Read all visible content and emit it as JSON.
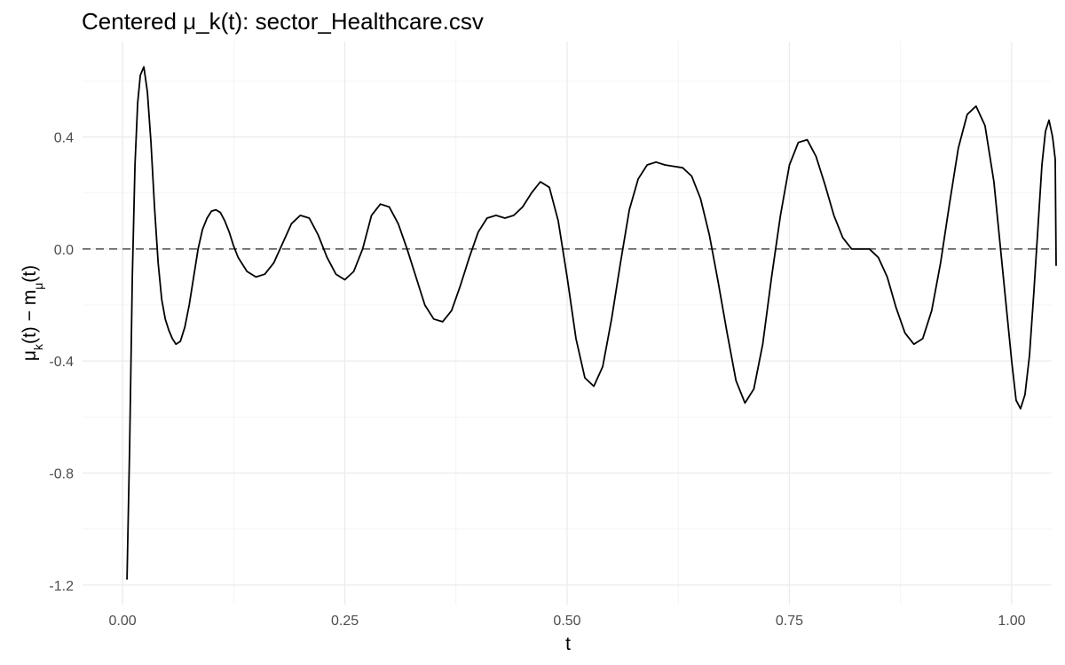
{
  "chart_data": {
    "type": "line",
    "title": "Centered μ_k(t): sector_Healthcare.csv",
    "xlabel": "t",
    "ylabel": {
      "main": "μ",
      "sub1": "k",
      "mid": "(t) − m",
      "sub2": "μ",
      "end": "(t)"
    },
    "xlim": [
      -0.045,
      1.045
    ],
    "ylim": [
      -1.27,
      0.74
    ],
    "x_ticks": [
      0.0,
      0.25,
      0.5,
      0.75,
      1.0
    ],
    "x_tick_labels": [
      "0.00",
      "0.25",
      "0.50",
      "0.75",
      "1.00"
    ],
    "x_minor_ticks": [
      0.125,
      0.375,
      0.625,
      0.875
    ],
    "y_ticks": [
      -1.2,
      -0.8,
      -0.4,
      0.0,
      0.4
    ],
    "y_tick_labels": [
      "-1.2",
      "-0.8",
      "-0.4",
      "0.0",
      "0.4"
    ],
    "y_minor_ticks": [
      -1.0,
      -0.6,
      -0.2,
      0.2,
      0.6
    ],
    "grid": true,
    "reference_line": {
      "y": 0.0,
      "style": "dashed",
      "color": "#595959"
    },
    "series": [
      {
        "color": "#000000",
        "points": [
          [
            0.005,
            -1.18
          ],
          [
            0.008,
            -0.7
          ],
          [
            0.011,
            -0.1
          ],
          [
            0.014,
            0.3
          ],
          [
            0.017,
            0.52
          ],
          [
            0.02,
            0.62
          ],
          [
            0.024,
            0.65
          ],
          [
            0.028,
            0.56
          ],
          [
            0.032,
            0.38
          ],
          [
            0.036,
            0.15
          ],
          [
            0.04,
            -0.05
          ],
          [
            0.044,
            -0.18
          ],
          [
            0.048,
            -0.25
          ],
          [
            0.052,
            -0.29
          ],
          [
            0.056,
            -0.32
          ],
          [
            0.06,
            -0.34
          ],
          [
            0.065,
            -0.33
          ],
          [
            0.07,
            -0.28
          ],
          [
            0.075,
            -0.2
          ],
          [
            0.08,
            -0.1
          ],
          [
            0.085,
            0.0
          ],
          [
            0.09,
            0.07
          ],
          [
            0.095,
            0.11
          ],
          [
            0.1,
            0.135
          ],
          [
            0.105,
            0.14
          ],
          [
            0.11,
            0.13
          ],
          [
            0.115,
            0.1
          ],
          [
            0.12,
            0.06
          ],
          [
            0.125,
            0.01
          ],
          [
            0.13,
            -0.03
          ],
          [
            0.14,
            -0.08
          ],
          [
            0.15,
            -0.1
          ],
          [
            0.16,
            -0.09
          ],
          [
            0.17,
            -0.05
          ],
          [
            0.18,
            0.02
          ],
          [
            0.19,
            0.09
          ],
          [
            0.2,
            0.12
          ],
          [
            0.21,
            0.11
          ],
          [
            0.22,
            0.05
          ],
          [
            0.23,
            -0.03
          ],
          [
            0.24,
            -0.09
          ],
          [
            0.25,
            -0.11
          ],
          [
            0.26,
            -0.08
          ],
          [
            0.27,
            0.0
          ],
          [
            0.28,
            0.12
          ],
          [
            0.29,
            0.16
          ],
          [
            0.3,
            0.15
          ],
          [
            0.31,
            0.09
          ],
          [
            0.32,
            0.0
          ],
          [
            0.33,
            -0.1
          ],
          [
            0.34,
            -0.2
          ],
          [
            0.35,
            -0.25
          ],
          [
            0.36,
            -0.26
          ],
          [
            0.37,
            -0.22
          ],
          [
            0.38,
            -0.13
          ],
          [
            0.39,
            -0.03
          ],
          [
            0.4,
            0.06
          ],
          [
            0.41,
            0.11
          ],
          [
            0.42,
            0.12
          ],
          [
            0.43,
            0.11
          ],
          [
            0.44,
            0.12
          ],
          [
            0.45,
            0.15
          ],
          [
            0.46,
            0.2
          ],
          [
            0.47,
            0.24
          ],
          [
            0.48,
            0.22
          ],
          [
            0.49,
            0.1
          ],
          [
            0.5,
            -0.1
          ],
          [
            0.51,
            -0.32
          ],
          [
            0.52,
            -0.46
          ],
          [
            0.53,
            -0.49
          ],
          [
            0.54,
            -0.42
          ],
          [
            0.55,
            -0.25
          ],
          [
            0.56,
            -0.05
          ],
          [
            0.57,
            0.14
          ],
          [
            0.58,
            0.25
          ],
          [
            0.59,
            0.3
          ],
          [
            0.6,
            0.31
          ],
          [
            0.61,
            0.3
          ],
          [
            0.62,
            0.295
          ],
          [
            0.63,
            0.29
          ],
          [
            0.64,
            0.26
          ],
          [
            0.65,
            0.18
          ],
          [
            0.66,
            0.05
          ],
          [
            0.67,
            -0.12
          ],
          [
            0.68,
            -0.3
          ],
          [
            0.69,
            -0.47
          ],
          [
            0.7,
            -0.55
          ],
          [
            0.71,
            -0.5
          ],
          [
            0.72,
            -0.34
          ],
          [
            0.73,
            -0.1
          ],
          [
            0.74,
            0.12
          ],
          [
            0.75,
            0.3
          ],
          [
            0.76,
            0.38
          ],
          [
            0.77,
            0.39
          ],
          [
            0.78,
            0.33
          ],
          [
            0.79,
            0.23
          ],
          [
            0.8,
            0.12
          ],
          [
            0.81,
            0.04
          ],
          [
            0.82,
            0.0
          ],
          [
            0.83,
            0.0
          ],
          [
            0.84,
            0.0
          ],
          [
            0.85,
            -0.03
          ],
          [
            0.86,
            -0.1
          ],
          [
            0.87,
            -0.21
          ],
          [
            0.88,
            -0.3
          ],
          [
            0.89,
            -0.34
          ],
          [
            0.9,
            -0.32
          ],
          [
            0.91,
            -0.22
          ],
          [
            0.92,
            -0.05
          ],
          [
            0.93,
            0.16
          ],
          [
            0.94,
            0.36
          ],
          [
            0.95,
            0.48
          ],
          [
            0.96,
            0.51
          ],
          [
            0.97,
            0.44
          ],
          [
            0.98,
            0.24
          ],
          [
            0.99,
            -0.08
          ],
          [
            1.0,
            -0.4
          ],
          [
            1.005,
            -0.54
          ],
          [
            1.01,
            -0.57
          ],
          [
            1.015,
            -0.52
          ],
          [
            1.02,
            -0.38
          ],
          [
            1.025,
            -0.15
          ],
          [
            1.03,
            0.1
          ],
          [
            1.034,
            0.3
          ],
          [
            1.038,
            0.42
          ],
          [
            1.042,
            0.46
          ],
          [
            1.046,
            0.4
          ],
          [
            1.049,
            0.32
          ],
          [
            1.05,
            -0.06
          ]
        ]
      }
    ]
  }
}
